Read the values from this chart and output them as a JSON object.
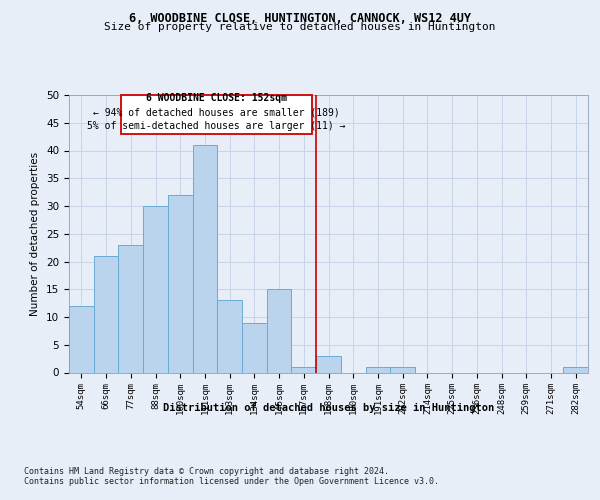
{
  "title1": "6, WOODBINE CLOSE, HUNTINGTON, CANNOCK, WS12 4UY",
  "title2": "Size of property relative to detached houses in Huntington",
  "xlabel": "Distribution of detached houses by size in Huntington",
  "ylabel": "Number of detached properties",
  "categories": [
    "54sqm",
    "66sqm",
    "77sqm",
    "88sqm",
    "100sqm",
    "111sqm",
    "123sqm",
    "134sqm",
    "145sqm",
    "157sqm",
    "168sqm",
    "180sqm",
    "191sqm",
    "202sqm",
    "214sqm",
    "225sqm",
    "236sqm",
    "248sqm",
    "259sqm",
    "271sqm",
    "282sqm"
  ],
  "values": [
    12,
    21,
    23,
    30,
    32,
    41,
    13,
    9,
    15,
    1,
    3,
    0,
    1,
    1,
    0,
    0,
    0,
    0,
    0,
    0,
    1
  ],
  "bar_color": "#bad4ed",
  "bar_edge_color": "#6aaad4",
  "grid_color": "#c8d4e8",
  "vline_x": 9.5,
  "vline_color": "#cc0000",
  "annotation_title": "6 WOODBINE CLOSE: 152sqm",
  "annotation_line1": "← 94% of detached houses are smaller (189)",
  "annotation_line2": "5% of semi-detached houses are larger (11) →",
  "annotation_box_color": "#cc0000",
  "ylim": [
    0,
    50
  ],
  "yticks": [
    0,
    5,
    10,
    15,
    20,
    25,
    30,
    35,
    40,
    45,
    50
  ],
  "footer1": "Contains HM Land Registry data © Crown copyright and database right 2024.",
  "footer2": "Contains public sector information licensed under the Open Government Licence v3.0.",
  "bg_color": "#e8eef8",
  "plot_bg_color": "#e8eef8"
}
